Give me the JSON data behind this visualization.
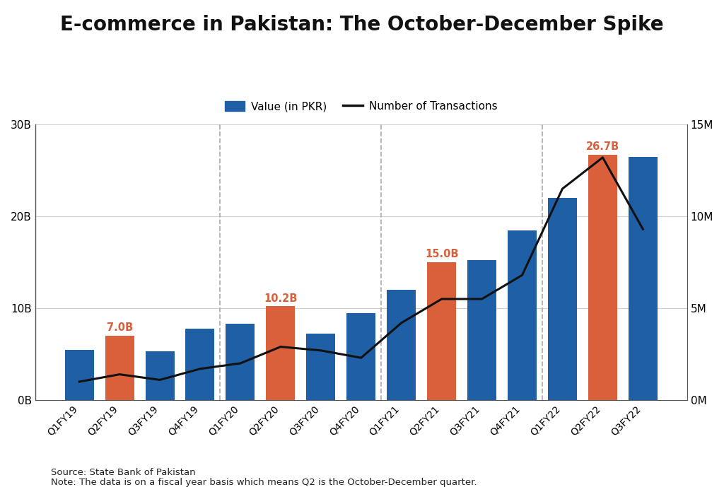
{
  "title": "E-commerce in Pakistan: The October-December Spike",
  "categories": [
    "Q1FY19",
    "Q2FY19",
    "Q3FY19",
    "Q4FY19",
    "Q1FY20",
    "Q2FY20",
    "Q3FY20",
    "Q4FY20",
    "Q1FY21",
    "Q2FY21",
    "Q3FY21",
    "Q4FY21",
    "Q1FY22",
    "Q2FY22",
    "Q3FY22"
  ],
  "bar_values_B": [
    5.5,
    7.0,
    5.3,
    7.8,
    8.3,
    10.2,
    7.2,
    9.5,
    12.0,
    15.0,
    15.2,
    18.5,
    22.0,
    26.7,
    26.5
  ],
  "bar_colors": [
    "#1f5fa6",
    "#d9603b",
    "#1f5fa6",
    "#1f5fa6",
    "#1f5fa6",
    "#d9603b",
    "#1f5fa6",
    "#1f5fa6",
    "#1f5fa6",
    "#d9603b",
    "#1f5fa6",
    "#1f5fa6",
    "#1f5fa6",
    "#d9603b",
    "#1f5fa6"
  ],
  "transactions_M": [
    1.0,
    1.4,
    1.1,
    1.7,
    2.0,
    2.9,
    2.7,
    2.3,
    4.2,
    5.5,
    5.5,
    6.8,
    11.5,
    13.2,
    9.3
  ],
  "highlighted_labels": {
    "1": "7.0B",
    "5": "10.2B",
    "9": "15.0B",
    "13": "26.7B"
  },
  "dashed_vlines_after_indices": [
    3,
    7,
    11
  ],
  "bar_color_normal": "#1f5fa6",
  "bar_color_highlight": "#d9603b",
  "line_color": "#111111",
  "label_color_highlight": "#d9603b",
  "ylim_left": [
    0,
    30
  ],
  "ylim_right": [
    0,
    15
  ],
  "yticks_left_B": [
    0,
    10,
    20,
    30
  ],
  "yticks_left_labels": [
    "0B",
    "10B",
    "20B",
    "30B"
  ],
  "yticks_right_M": [
    0,
    5,
    10,
    15
  ],
  "yticks_right_labels": [
    "0M",
    "5M",
    "10M",
    "15M"
  ],
  "legend_bar_label": "Value (in PKR)",
  "legend_line_label": "Number of Transactions",
  "source_text": "Source: State Bank of Pakistan",
  "note_text": "Note: The data is on a fiscal year basis which means Q2 is the October-December quarter.",
  "background_color": "#ffffff",
  "grid_color": "#d0d0d0",
  "title_fontsize": 20,
  "tick_fontsize": 11,
  "label_fontsize": 10,
  "figsize": [
    10.24,
    6.89
  ],
  "dpi": 100
}
